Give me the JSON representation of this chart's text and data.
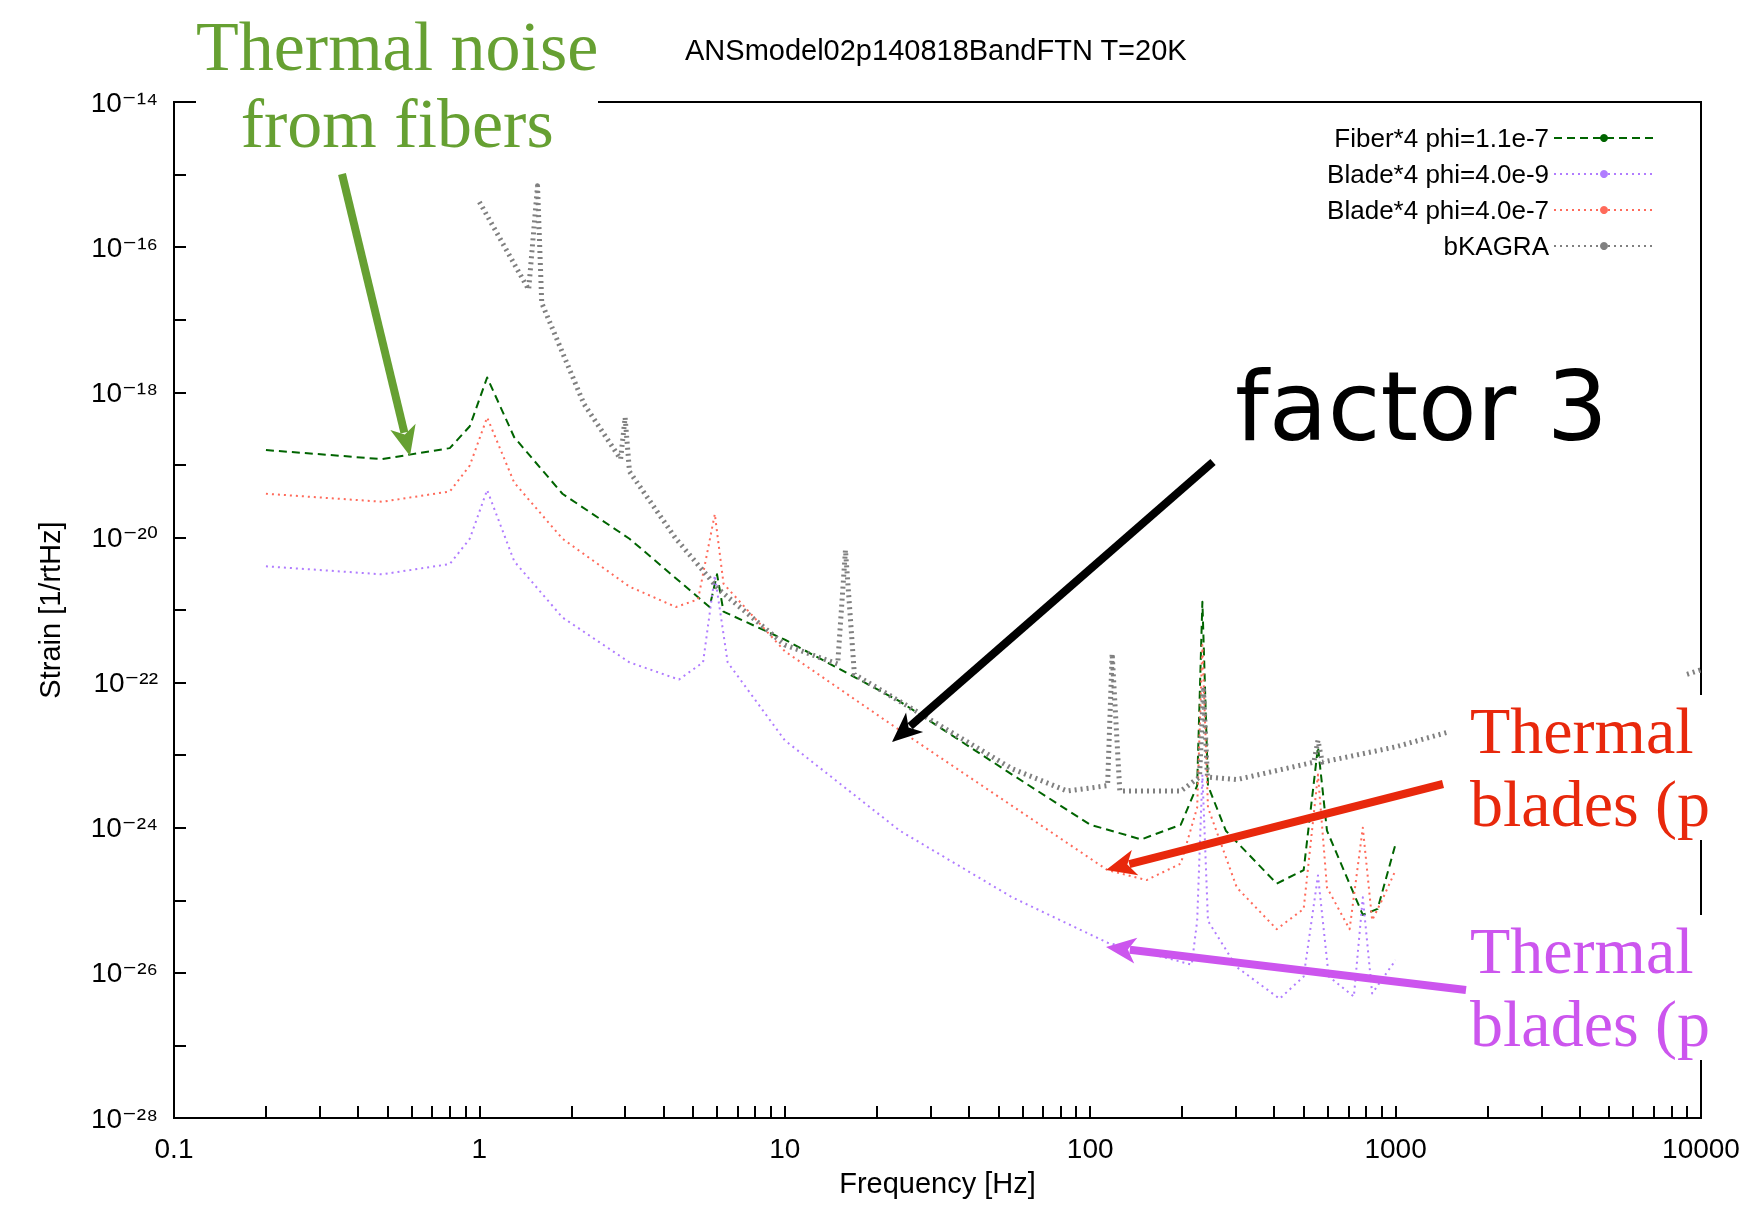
{
  "chart_data": {
    "type": "line",
    "title": "ANSmodel02p140818BandFTN T=20K",
    "xlabel": "Frequency [Hz]",
    "ylabel": "Strain [1/rtHz]",
    "log": "xy",
    "legend": "top right",
    "marker": "none",
    "xlim": [
      0.1,
      10000
    ],
    "ylim": [
      1e-28,
      1e-14
    ],
    "xticks": [
      0.1,
      {
        "value": 0.2,
        "label": null
      },
      {
        "value": 0.3,
        "label": null
      },
      {
        "value": 0.4,
        "label": null
      },
      {
        "value": 0.5,
        "label": null
      },
      {
        "value": 0.6,
        "label": null
      },
      {
        "value": 0.7,
        "label": null
      },
      {
        "value": 0.8,
        "label": null
      },
      {
        "value": 0.9,
        "label": null
      },
      1,
      {
        "value": 2,
        "label": null
      },
      {
        "value": 3,
        "label": null
      },
      {
        "value": 4,
        "label": null
      },
      {
        "value": 5,
        "label": null
      },
      {
        "value": 6,
        "label": null
      },
      {
        "value": 7,
        "label": null
      },
      {
        "value": 8,
        "label": null
      },
      {
        "value": 9,
        "label": null
      },
      10,
      {
        "value": 20,
        "label": null
      },
      {
        "value": 30,
        "label": null
      },
      {
        "value": 40,
        "label": null
      },
      {
        "value": 50,
        "label": null
      },
      {
        "value": 60,
        "label": null
      },
      {
        "value": 70,
        "label": null
      },
      {
        "value": 80,
        "label": null
      },
      {
        "value": 90,
        "label": null
      },
      100,
      {
        "value": 200,
        "label": null
      },
      {
        "value": 300,
        "label": null
      },
      {
        "value": 400,
        "label": null
      },
      {
        "value": 500,
        "label": null
      },
      {
        "value": 600,
        "label": null
      },
      {
        "value": 700,
        "label": null
      },
      {
        "value": 800,
        "label": null
      },
      {
        "value": 900,
        "label": null
      },
      1000,
      {
        "value": 2000,
        "label": null
      },
      {
        "value": 3000,
        "label": null
      },
      {
        "value": 4000,
        "label": null
      },
      {
        "value": 5000,
        "label": null
      },
      {
        "value": 6000,
        "label": null
      },
      {
        "value": 7000,
        "label": null
      },
      {
        "value": 8000,
        "label": null
      },
      {
        "value": 9000,
        "label": null
      },
      10000
    ],
    "yticks": [
      {
        "value": 1e-28,
        "label": "10⁻²⁸"
      },
      {
        "value": 1e-27,
        "label": null
      },
      {
        "value": 1e-26,
        "label": "10⁻²⁶"
      },
      {
        "value": 1e-25,
        "label": null
      },
      {
        "value": 1e-24,
        "label": "10⁻²⁴"
      },
      {
        "value": 1e-23,
        "label": null
      },
      {
        "value": 1e-22,
        "label": "10⁻²²"
      },
      {
        "value": 1e-21,
        "label": null
      },
      {
        "value": 1e-20,
        "label": "10⁻²⁰"
      },
      {
        "value": 1e-19,
        "label": null
      },
      {
        "value": 1e-18,
        "label": "10⁻¹⁸"
      },
      {
        "value": 1e-17,
        "label": null
      },
      {
        "value": 1e-16,
        "label": "10⁻¹⁶"
      },
      {
        "value": 1e-15,
        "label": null
      },
      {
        "value": 1e-14,
        "label": "10⁻¹⁴"
      }
    ],
    "series": [
      {
        "name": "Fiber*4 phi=1.1e-7",
        "color": "#006400",
        "line_style": "dashed",
        "x": [
          0.2,
          0.48,
          0.8,
          0.93,
          1.06,
          1.3,
          1.87,
          3.1,
          5.67,
          6.0,
          6.3,
          10,
          23.8,
          55.5,
          100,
          147,
          198,
          224,
          233,
          243,
          278,
          408,
          500,
          557,
          596,
          781,
          873,
          1000
        ],
        "values": [
          1.6e-19,
          1.2e-19,
          1.7e-19,
          3.4e-19,
          1.6e-18,
          2.4e-19,
          4e-20,
          9.6e-21,
          1.1e-21,
          3.1e-21,
          9.5e-22,
          3.9e-22,
          5.5e-23,
          5.4e-24,
          1.1e-24,
          6.9e-25,
          1.1e-24,
          3.8e-24,
          1.3e-21,
          3.8e-24,
          9.1e-25,
          1.7e-25,
          2.6e-25,
          1.3e-23,
          9.1e-25,
          6.3e-26,
          7.6e-26,
          6e-25
        ]
      },
      {
        "name": "Blade*4 phi=4.0e-9",
        "color": "#b07cff",
        "line_style": "dotted",
        "x": [
          0.2,
          0.48,
          0.8,
          0.93,
          1.06,
          1.3,
          1.87,
          3.1,
          4.5,
          5.4,
          5.9,
          6.5,
          10,
          23.8,
          55.5,
          114,
          215,
          224,
          233,
          243,
          302,
          417,
          500,
          557,
          604,
          730,
          781,
          838,
          1000
        ],
        "values": [
          4e-21,
          3.1e-21,
          4.3e-21,
          9.6e-21,
          4.5e-20,
          4.7e-21,
          7.9e-22,
          1.9e-22,
          1.1e-22,
          1.9e-22,
          3e-21,
          1.9e-22,
          1.6e-23,
          9.1e-25,
          1.1e-25,
          2.6e-26,
          1.3e-26,
          5.2e-26,
          5.4e-24,
          5.2e-26,
          1.2e-26,
          4.4e-27,
          8.9e-27,
          2.2e-25,
          8.9e-27,
          4.7e-27,
          1.1e-25,
          5.2e-27,
          1.5e-26
        ]
      },
      {
        "name": "Blade*4 phi=4.0e-7",
        "color": "#ff6a5a",
        "line_style": "dotted",
        "x": [
          0.2,
          0.48,
          0.8,
          0.93,
          1.06,
          1.3,
          1.87,
          3.1,
          4.4,
          5.2,
          5.9,
          6.3,
          10,
          23.8,
          55.5,
          114,
          153,
          198,
          224,
          233,
          243,
          302,
          408,
          500,
          557,
          596,
          707,
          781,
          838,
          912,
          1000
        ],
        "values": [
          4e-20,
          3.1e-20,
          4.3e-20,
          9.8e-20,
          4.5e-19,
          5.7e-20,
          9.6e-21,
          2.1e-21,
          1.1e-21,
          1.4e-21,
          2.1e-20,
          2.3e-21,
          2.7e-22,
          2.2e-23,
          2e-24,
          2.6e-25,
          1.9e-25,
          3.2e-25,
          1.9e-24,
          3.3e-22,
          1.9e-24,
          1.5e-25,
          4e-26,
          7.6e-26,
          5.4e-24,
          1.5e-25,
          4e-26,
          1e-24,
          5.3e-26,
          1.1e-25,
          2.6e-25
        ]
      },
      {
        "name": "bKAGRA",
        "color": "#808080",
        "line_style": "dotted",
        "x": [
          1.0,
          1.45,
          1.55,
          1.6,
          2.2,
          2.9,
          3.0,
          3.1,
          4.4,
          6.1,
          10,
          14.9,
          15.8,
          16.9,
          23.8,
          55.5,
          84,
          114,
          118,
          125,
          198,
          228,
          235,
          242,
          302,
          540,
          557,
          575,
          1000,
          1500,
          3000,
          9000,
          10000
        ],
        "values": [
          4.2e-16,
          2.6e-17,
          7e-16,
          1.7e-17,
          6.9e-19,
          1.2e-19,
          4.5e-19,
          8.1e-20,
          9.6e-21,
          1.9e-21,
          3.3e-22,
          1.8e-22,
          6.7e-21,
          1.3e-22,
          5.5e-23,
          6.5e-24,
          3.2e-24,
          3.8e-24,
          2.5e-22,
          3.2e-24,
          3.2e-24,
          5e-24,
          7.9e-23,
          5e-24,
          4.6e-24,
          8e-24,
          1.6e-23,
          8e-24,
          1.3e-23,
          2.1e-23,
          null,
          1.3e-22,
          1.5e-22
        ]
      }
    ],
    "annotations": [
      "Thermal noise\nfrom fibers",
      "factor 3",
      "Thermal\nblades (p",
      "Thermal\nblades (p"
    ]
  }
}
